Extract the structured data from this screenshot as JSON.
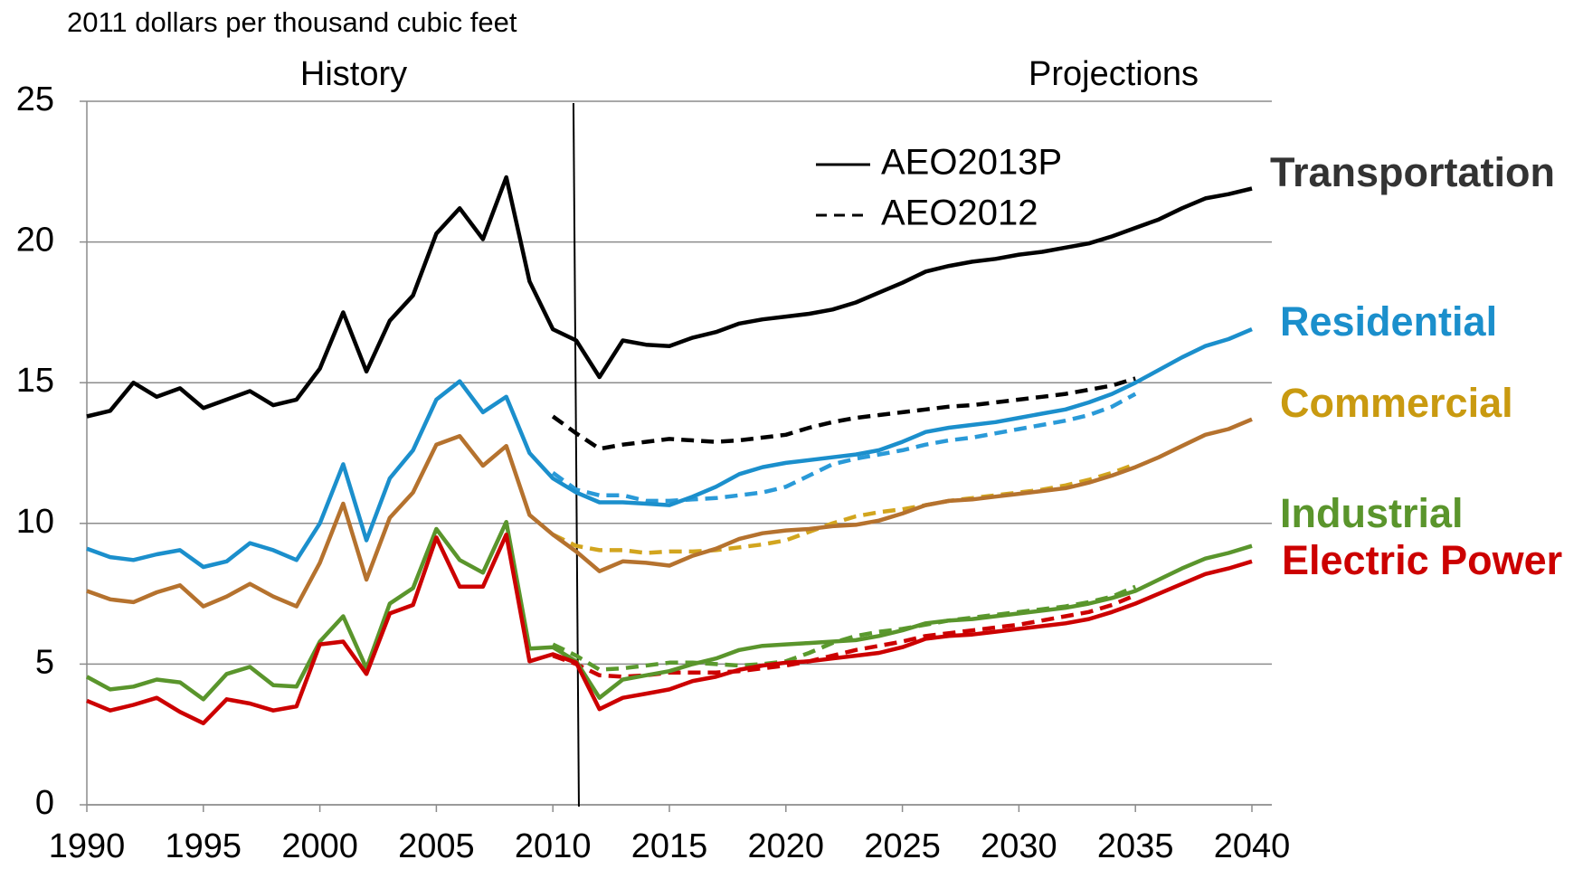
{
  "chart_data": {
    "type": "line",
    "y_axis_label": "2011 dollars per thousand cubic feet",
    "annotations": {
      "history": "History",
      "projections": "Projections"
    },
    "divider_x": 2011,
    "x": [
      1990,
      1991,
      1992,
      1993,
      1994,
      1995,
      1996,
      1997,
      1998,
      1999,
      2000,
      2001,
      2002,
      2003,
      2004,
      2005,
      2006,
      2007,
      2008,
      2009,
      2010,
      2011,
      2012,
      2013,
      2014,
      2015,
      2016,
      2017,
      2018,
      2019,
      2020,
      2021,
      2022,
      2023,
      2024,
      2025,
      2026,
      2027,
      2028,
      2029,
      2030,
      2031,
      2032,
      2033,
      2034,
      2035,
      2036,
      2037,
      2038,
      2039,
      2040
    ],
    "xlim": [
      1990,
      2041
    ],
    "xticks": [
      1990,
      1995,
      2000,
      2005,
      2010,
      2015,
      2020,
      2025,
      2030,
      2035,
      2040
    ],
    "ylim": [
      0,
      25
    ],
    "yticks": [
      0,
      5,
      10,
      15,
      20,
      25
    ],
    "grid": true,
    "legend": [
      {
        "label": "AEO2013P",
        "style": "solid"
      },
      {
        "label": "AEO2012",
        "style": "dashed"
      }
    ],
    "series": [
      {
        "name": "Transportation",
        "color": "#000000",
        "dash_color": "#000000",
        "label_color": "#333333",
        "values": [
          13.8,
          14.0,
          15.0,
          14.5,
          14.8,
          14.1,
          14.4,
          14.7,
          14.2,
          14.4,
          15.5,
          17.5,
          15.4,
          17.2,
          18.1,
          20.3,
          21.2,
          20.1,
          22.3,
          18.6,
          16.9,
          16.5,
          15.2,
          16.5,
          16.35,
          16.3,
          16.6,
          16.8,
          17.1,
          17.25,
          17.35,
          17.45,
          17.6,
          17.85,
          18.2,
          18.55,
          18.95,
          19.15,
          19.3,
          19.4,
          19.55,
          19.65,
          19.8,
          19.95,
          20.2,
          20.5,
          20.8,
          21.2,
          21.55,
          21.7,
          21.9
        ],
        "values_aeo2012": [
          null,
          null,
          null,
          null,
          null,
          null,
          null,
          null,
          null,
          null,
          null,
          null,
          null,
          null,
          null,
          null,
          null,
          null,
          null,
          null,
          13.8,
          13.2,
          12.65,
          12.8,
          12.9,
          13.0,
          12.95,
          12.9,
          12.95,
          13.05,
          13.15,
          13.4,
          13.6,
          13.75,
          13.85,
          13.95,
          14.05,
          14.15,
          14.2,
          14.3,
          14.4,
          14.5,
          14.6,
          14.75,
          14.9,
          15.15,
          null,
          null,
          null,
          null,
          null
        ]
      },
      {
        "name": "Residential",
        "color": "#1b8fcc",
        "dash_color": "#2a9ad8",
        "label_color": "#1b8fcc",
        "values": [
          9.1,
          8.8,
          8.7,
          8.9,
          9.05,
          8.45,
          8.65,
          9.3,
          9.05,
          8.7,
          10.0,
          12.1,
          9.4,
          11.6,
          12.6,
          14.4,
          15.05,
          13.95,
          14.5,
          12.5,
          11.6,
          11.1,
          10.75,
          10.75,
          10.7,
          10.65,
          10.95,
          11.3,
          11.75,
          12.0,
          12.15,
          12.25,
          12.35,
          12.45,
          12.6,
          12.9,
          13.25,
          13.4,
          13.5,
          13.6,
          13.75,
          13.9,
          14.05,
          14.3,
          14.6,
          15.0,
          15.45,
          15.9,
          16.3,
          16.55,
          16.9
        ],
        "values_aeo2012": [
          null,
          null,
          null,
          null,
          null,
          null,
          null,
          null,
          null,
          null,
          null,
          null,
          null,
          null,
          null,
          null,
          null,
          null,
          null,
          null,
          11.8,
          11.2,
          11.0,
          11.0,
          10.8,
          10.8,
          10.85,
          10.9,
          11.0,
          11.1,
          11.3,
          11.7,
          12.1,
          12.3,
          12.45,
          12.6,
          12.8,
          12.95,
          13.05,
          13.2,
          13.35,
          13.5,
          13.65,
          13.85,
          14.15,
          14.6,
          null,
          null,
          null,
          null,
          null
        ]
      },
      {
        "name": "Commercial",
        "color": "#b5722e",
        "dash_color": "#d2a51e",
        "label_color": "#c99a10",
        "values": [
          7.6,
          7.3,
          7.2,
          7.55,
          7.8,
          7.05,
          7.4,
          7.85,
          7.4,
          7.05,
          8.6,
          10.7,
          8.0,
          10.2,
          11.1,
          12.8,
          13.1,
          12.05,
          12.75,
          10.3,
          9.6,
          9.0,
          8.3,
          8.65,
          8.6,
          8.5,
          8.85,
          9.1,
          9.45,
          9.65,
          9.75,
          9.8,
          9.9,
          9.95,
          10.1,
          10.35,
          10.65,
          10.8,
          10.85,
          10.95,
          11.05,
          11.15,
          11.25,
          11.45,
          11.7,
          12.0,
          12.35,
          12.75,
          13.15,
          13.35,
          13.7
        ],
        "values_aeo2012": [
          null,
          null,
          null,
          null,
          null,
          null,
          null,
          null,
          null,
          null,
          null,
          null,
          null,
          null,
          null,
          null,
          null,
          null,
          null,
          null,
          9.6,
          9.2,
          9.05,
          9.05,
          8.95,
          9.0,
          9.0,
          9.05,
          9.15,
          9.25,
          9.4,
          9.7,
          10.0,
          10.25,
          10.4,
          10.5,
          10.65,
          10.8,
          10.9,
          11.0,
          11.1,
          11.2,
          11.35,
          11.55,
          11.8,
          12.1,
          null,
          null,
          null,
          null,
          null
        ]
      },
      {
        "name": "Industrial",
        "color": "#5a952c",
        "dash_color": "#5a9a2e",
        "label_color": "#5a952c",
        "values": [
          4.55,
          4.1,
          4.2,
          4.45,
          4.35,
          3.75,
          4.65,
          4.9,
          4.25,
          4.2,
          5.8,
          6.7,
          4.85,
          7.15,
          7.7,
          9.8,
          8.7,
          8.25,
          10.05,
          5.55,
          5.6,
          5.1,
          3.8,
          4.45,
          4.6,
          4.75,
          5.0,
          5.2,
          5.5,
          5.65,
          5.7,
          5.75,
          5.8,
          5.85,
          6.0,
          6.2,
          6.45,
          6.55,
          6.6,
          6.7,
          6.8,
          6.9,
          7.0,
          7.15,
          7.35,
          7.6,
          8.0,
          8.4,
          8.75,
          8.95,
          9.2
        ],
        "values_aeo2012": [
          null,
          null,
          null,
          null,
          null,
          null,
          null,
          null,
          null,
          null,
          null,
          null,
          null,
          null,
          null,
          null,
          null,
          null,
          null,
          null,
          5.7,
          5.3,
          4.8,
          4.85,
          4.95,
          5.05,
          5.05,
          5.0,
          4.95,
          5.0,
          5.1,
          5.4,
          5.75,
          6.0,
          6.15,
          6.25,
          6.4,
          6.55,
          6.65,
          6.75,
          6.85,
          6.95,
          7.05,
          7.2,
          7.4,
          7.75,
          null,
          null,
          null,
          null,
          null
        ]
      },
      {
        "name": "Electric Power",
        "color": "#cc0000",
        "dash_color": "#cc0000",
        "label_color": "#cc0000",
        "values": [
          3.7,
          3.35,
          3.55,
          3.8,
          3.3,
          2.9,
          3.75,
          3.6,
          3.35,
          3.5,
          5.7,
          5.8,
          4.65,
          6.8,
          7.1,
          9.5,
          7.75,
          7.75,
          9.6,
          5.1,
          5.35,
          5.05,
          3.4,
          3.8,
          3.95,
          4.1,
          4.4,
          4.55,
          4.8,
          4.95,
          5.05,
          5.1,
          5.2,
          5.3,
          5.4,
          5.6,
          5.9,
          6.0,
          6.05,
          6.15,
          6.25,
          6.35,
          6.45,
          6.6,
          6.85,
          7.15,
          7.5,
          7.85,
          8.2,
          8.4,
          8.65
        ],
        "values_aeo2012": [
          null,
          null,
          null,
          null,
          null,
          null,
          null,
          null,
          null,
          null,
          null,
          null,
          null,
          null,
          null,
          null,
          null,
          null,
          null,
          null,
          5.3,
          5.0,
          4.6,
          4.55,
          4.6,
          4.7,
          4.7,
          4.7,
          4.75,
          4.85,
          4.95,
          5.1,
          5.3,
          5.5,
          5.65,
          5.8,
          6.0,
          6.1,
          6.2,
          6.3,
          6.4,
          6.55,
          6.7,
          6.85,
          7.1,
          7.45,
          null,
          null,
          null,
          null,
          null
        ]
      }
    ]
  }
}
